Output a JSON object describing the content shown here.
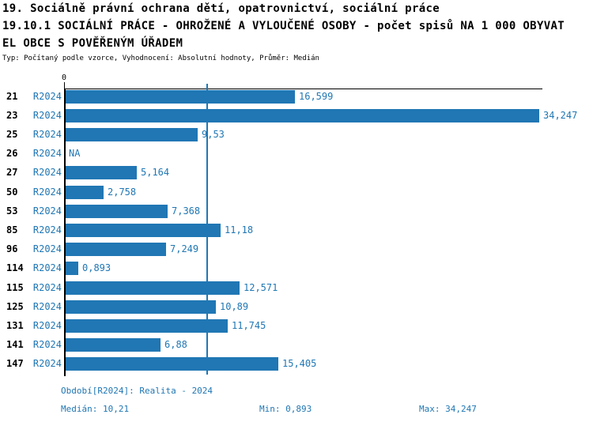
{
  "header": {
    "line1": "19. Sociálně právní ochrana dětí, opatrovnictví, sociální práce",
    "line2": "19.10.1 SOCIÁLNÍ PRÁCE - OHROŽENÉ A VYLOUČENÉ OSOBY - počet spisů NA 1 000 OBYVAT",
    "line3": "EL OBCE S POVĚŘENÝM ÚŘADEM",
    "meta": "Typ: Počítaný podle vzorce, Vyhodnocení: Absolutní hodnoty, Průměr: Medián"
  },
  "chart_data": {
    "type": "bar",
    "orientation": "horizontal",
    "series_label": "R2024",
    "categories": [
      "21",
      "23",
      "25",
      "26",
      "27",
      "50",
      "53",
      "85",
      "96",
      "114",
      "115",
      "125",
      "131",
      "141",
      "147"
    ],
    "values": [
      16.599,
      34.247,
      9.53,
      null,
      5.164,
      2.758,
      7.368,
      11.18,
      7.249,
      0.893,
      12.571,
      10.89,
      11.745,
      6.88,
      15.405
    ],
    "value_labels": [
      "16,599",
      "34,247",
      "9,53",
      "NA",
      "5,164",
      "2,758",
      "7,368",
      "11,18",
      "7,249",
      "0,893",
      "12,571",
      "10,89",
      "11,745",
      "6,88",
      "15,405"
    ],
    "zero_tick_label": "0",
    "xlim": [
      0,
      34.247
    ],
    "median_line_value": 10.21,
    "bar_color": "#2077b4",
    "label_color": "#2077b4",
    "grid": false,
    "legend_position": "none"
  },
  "footer": {
    "period": "Období[R2024]: Realita - 2024",
    "median": "Medián: 10,21",
    "min": "Min: 0,893",
    "max": "Max: 34,247"
  }
}
